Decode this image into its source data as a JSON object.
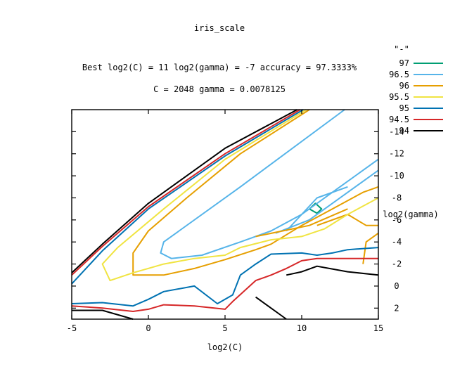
{
  "chart_data": {
    "type": "contour",
    "title": "iris_scale",
    "subtitle_lines": [
      "Best log2(C) = 11  log2(gamma) = -7  accuracy = 97.3333%",
      "C = 2048  gamma = 0.0078125"
    ],
    "xlabel": "log2(C)",
    "ylabel": "log2(gamma)",
    "xlim": [
      -5,
      15
    ],
    "ylim": [
      3,
      -16
    ],
    "xticks": [
      -5,
      0,
      5,
      10,
      15
    ],
    "yticks": [
      2,
      0,
      -2,
      -4,
      -6,
      -8,
      -10,
      -12,
      -14
    ],
    "legend_header": "\"-\"",
    "legend_position": "right",
    "series": [
      {
        "name": "97",
        "color": "#009e73",
        "lines": [
          [
            [
              10.5,
              -7
            ],
            [
              11,
              -6.6
            ],
            [
              11.3,
              -7
            ],
            [
              10.9,
              -7.5
            ],
            [
              10.5,
              -7
            ]
          ]
        ]
      },
      {
        "name": "96.5",
        "color": "#56b4e9",
        "lines": [
          [
            [
              12.8,
              -16
            ],
            [
              6,
              -9
            ],
            [
              2,
              -5
            ],
            [
              1,
              -4
            ],
            [
              0.8,
              -3
            ],
            [
              1.5,
              -2.5
            ],
            [
              3.5,
              -2.8
            ],
            [
              6,
              -4
            ],
            [
              8,
              -5
            ],
            [
              10,
              -6.5
            ],
            [
              12,
              -8.5
            ],
            [
              15,
              -11.5
            ]
          ],
          [
            [
              8.3,
              -4.8
            ],
            [
              10.5,
              -6
            ],
            [
              12,
              -7.5
            ],
            [
              15,
              -10.5
            ]
          ],
          [
            [
              9,
              -5
            ],
            [
              11,
              -8
            ],
            [
              13,
              -9
            ]
          ]
        ]
      },
      {
        "name": "96",
        "color": "#e69f00",
        "lines": [
          [
            [
              10.5,
              -16
            ],
            [
              6,
              -12
            ],
            [
              2.5,
              -8
            ],
            [
              0,
              -5
            ],
            [
              -1,
              -3
            ],
            [
              -1,
              -1
            ],
            [
              1,
              -1
            ],
            [
              3,
              -1.6
            ],
            [
              5,
              -2.4
            ],
            [
              7,
              -3.3
            ],
            [
              8,
              -3.8
            ],
            [
              10,
              -5.5
            ],
            [
              12,
              -7
            ],
            [
              14,
              -8.5
            ],
            [
              15,
              -9
            ]
          ],
          [
            [
              7,
              -4.5
            ],
            [
              10.5,
              -5.5
            ],
            [
              13,
              -7
            ]
          ],
          [
            [
              11,
              -5.5
            ],
            [
              13,
              -6.5
            ],
            [
              14.2,
              -5.5
            ],
            [
              15,
              -5.5
            ]
          ],
          [
            [
              14,
              -2
            ],
            [
              14.2,
              -4
            ],
            [
              15,
              -4.8
            ]
          ]
        ]
      },
      {
        "name": "95.5",
        "color": "#f0e442",
        "lines": [
          [
            [
              10.3,
              -16
            ],
            [
              5,
              -11.5
            ],
            [
              1,
              -7
            ],
            [
              -2,
              -3.5
            ],
            [
              -3,
              -2
            ],
            [
              -2.5,
              -0.5
            ],
            [
              -1,
              -1.2
            ],
            [
              1,
              -2
            ],
            [
              3,
              -2.5
            ],
            [
              5,
              -2.8
            ],
            [
              6,
              -3.5
            ],
            [
              8,
              -4.2
            ],
            [
              10,
              -4.5
            ],
            [
              11.5,
              -5.2
            ],
            [
              13,
              -6.5
            ],
            [
              15,
              -8
            ]
          ]
        ]
      },
      {
        "name": "95",
        "color": "#0072b2",
        "lines": [
          [
            [
              10.1,
              -16
            ],
            [
              5,
              -11.8
            ],
            [
              0,
              -7
            ],
            [
              -3,
              -3.2
            ],
            [
              -5,
              -0.2
            ]
          ],
          [
            [
              -5,
              1.6
            ],
            [
              -3,
              1.5
            ],
            [
              -1,
              1.8
            ],
            [
              0,
              1.2
            ],
            [
              1,
              0.5
            ],
            [
              3,
              0
            ],
            [
              4.5,
              1.6
            ],
            [
              5.5,
              0.8
            ],
            [
              6,
              -1
            ],
            [
              7,
              -2
            ],
            [
              8,
              -2.9
            ],
            [
              10,
              -3
            ],
            [
              11,
              -2.8
            ],
            [
              12,
              -3
            ],
            [
              13,
              -3.3
            ],
            [
              15,
              -3.5
            ]
          ]
        ]
      },
      {
        "name": "94.5",
        "color": "#d62728",
        "lines": [
          [
            [
              9.9,
              -16
            ],
            [
              5,
              -12
            ],
            [
              0,
              -7.2
            ],
            [
              -3,
              -3.6
            ],
            [
              -5,
              -1
            ]
          ],
          [
            [
              -5,
              1.8
            ],
            [
              -3,
              2
            ],
            [
              -1,
              2.3
            ],
            [
              0,
              2.1
            ],
            [
              1,
              1.7
            ],
            [
              3,
              1.8
            ],
            [
              5,
              2.1
            ],
            [
              5.5,
              1.4
            ],
            [
              7,
              -0.5
            ],
            [
              8,
              -1
            ],
            [
              9,
              -1.6
            ],
            [
              10,
              -2.3
            ],
            [
              11,
              -2.5
            ],
            [
              13,
              -2.5
            ],
            [
              15,
              -2.5
            ]
          ]
        ]
      },
      {
        "name": "94",
        "color": "#000000",
        "lines": [
          [
            [
              9.7,
              -16
            ],
            [
              5,
              -12.5
            ],
            [
              0,
              -7.5
            ],
            [
              -3,
              -3.8
            ],
            [
              -5,
              -1.2
            ]
          ],
          [
            [
              -5,
              2.2
            ],
            [
              -3,
              2.2
            ],
            [
              -1,
              3
            ]
          ],
          [
            [
              7,
              1
            ],
            [
              9,
              3
            ]
          ],
          [
            [
              9,
              -1
            ],
            [
              10,
              -1.3
            ],
            [
              11,
              -1.8
            ],
            [
              13,
              -1.3
            ],
            [
              15,
              -1
            ]
          ]
        ]
      }
    ]
  }
}
